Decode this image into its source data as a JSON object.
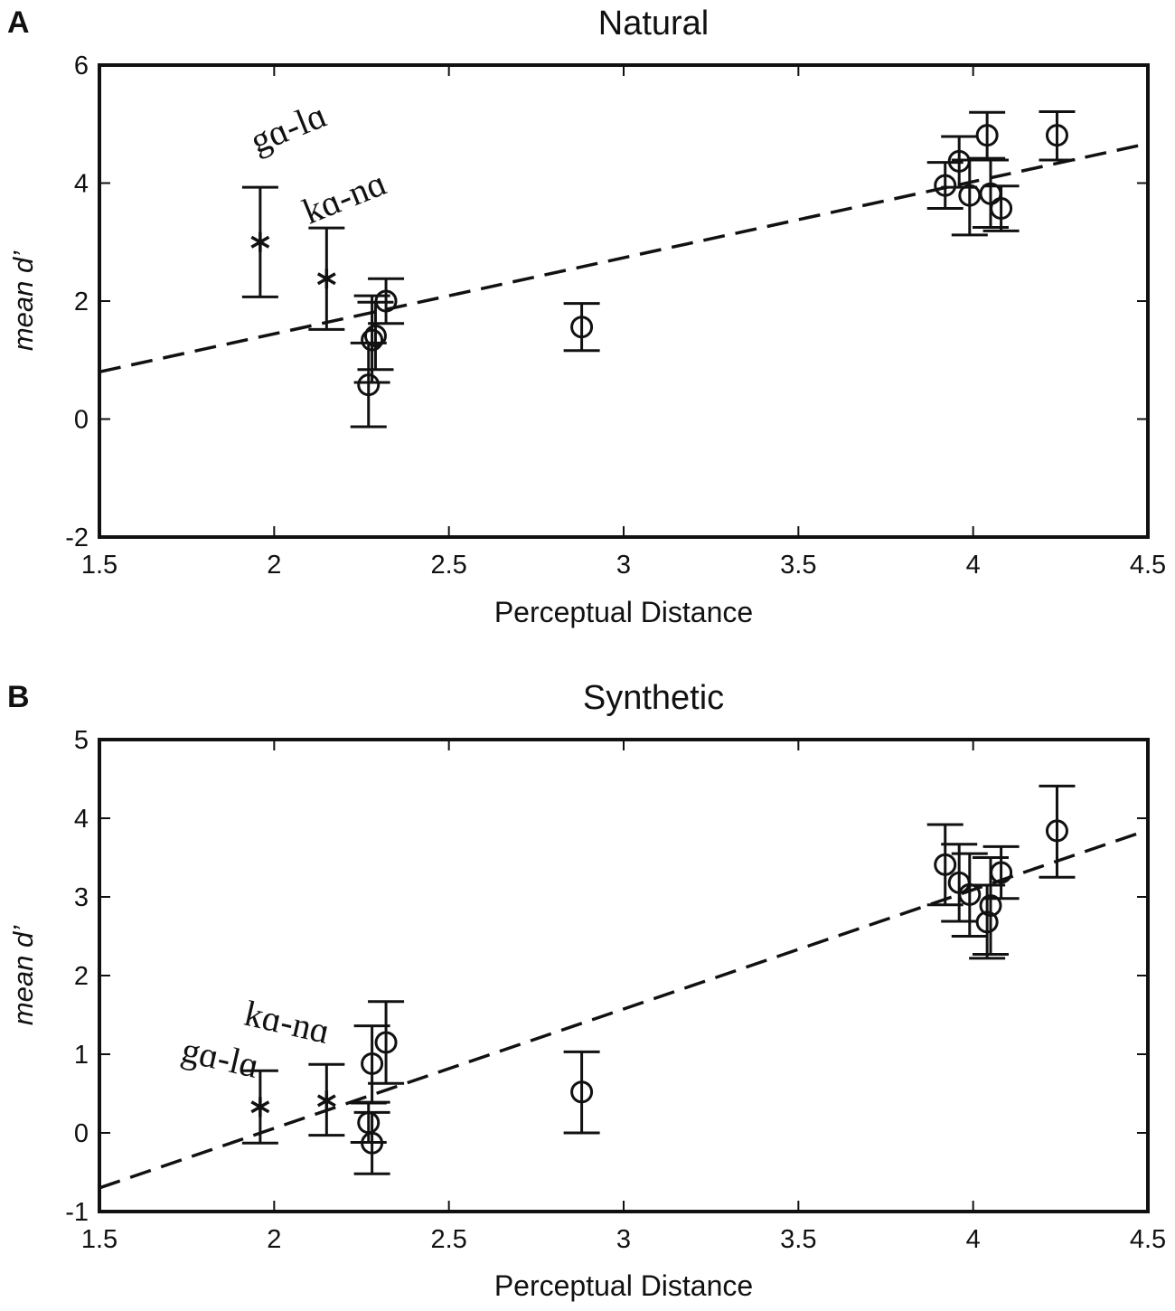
{
  "chart_data": [
    {
      "panel": "A",
      "type": "scatter",
      "title": "Natural",
      "xlabel": "Perceptual Distance",
      "ylabel": "mean d’",
      "xlim": [
        1.5,
        4.5
      ],
      "ylim": [
        -2,
        6
      ],
      "xticks": [
        "1.5",
        "2",
        "2.5",
        "3",
        "3.5",
        "4",
        "4.5"
      ],
      "yticks": [
        "-2",
        "0",
        "2",
        "4",
        "6"
      ],
      "annotations": [
        {
          "text": "gɑ-lɑ",
          "x": 1.95,
          "y": 4.5,
          "rotate": -22
        },
        {
          "text": "kɑ-nɑ",
          "x": 2.1,
          "y": 3.3,
          "rotate": -22
        }
      ],
      "series": [
        {
          "name": "star",
          "marker": "asterisk",
          "points": [
            {
              "x": 1.96,
              "y": 3.0,
              "lo": 2.07,
              "hi": 3.93
            },
            {
              "x": 2.15,
              "y": 2.38,
              "lo": 1.52,
              "hi": 3.24
            }
          ]
        },
        {
          "name": "circle",
          "marker": "circle",
          "points": [
            {
              "x": 2.27,
              "y": 0.58,
              "lo": -0.13,
              "hi": 1.29
            },
            {
              "x": 2.28,
              "y": 1.34,
              "lo": 0.62,
              "hi": 2.09
            },
            {
              "x": 2.29,
              "y": 1.41,
              "lo": 0.84,
              "hi": 1.98
            },
            {
              "x": 2.32,
              "y": 2.0,
              "lo": 1.62,
              "hi": 2.38
            },
            {
              "x": 2.88,
              "y": 1.56,
              "lo": 1.16,
              "hi": 1.96
            },
            {
              "x": 3.92,
              "y": 3.96,
              "lo": 3.57,
              "hi": 4.35
            },
            {
              "x": 3.96,
              "y": 4.37,
              "lo": 3.93,
              "hi": 4.79
            },
            {
              "x": 3.99,
              "y": 3.79,
              "lo": 3.12,
              "hi": 4.39
            },
            {
              "x": 4.04,
              "y": 4.81,
              "lo": 4.42,
              "hi": 5.2
            },
            {
              "x": 4.05,
              "y": 3.82,
              "lo": 3.25,
              "hi": 4.39
            },
            {
              "x": 4.08,
              "y": 3.57,
              "lo": 3.19,
              "hi": 3.95
            },
            {
              "x": 4.24,
              "y": 4.81,
              "lo": 4.39,
              "hi": 5.21
            }
          ]
        }
      ],
      "fit_line": {
        "style": "dashed",
        "x": [
          1.5,
          4.5
        ],
        "y": [
          0.8,
          4.67
        ]
      }
    },
    {
      "panel": "B",
      "type": "scatter",
      "title": "Synthetic",
      "xlabel": "Perceptual Distance",
      "ylabel": "mean d’",
      "xlim": [
        1.5,
        4.5
      ],
      "ylim": [
        -1,
        5
      ],
      "xticks": [
        "1.5",
        "2",
        "2.5",
        "3",
        "3.5",
        "4",
        "4.5"
      ],
      "yticks": [
        "-1",
        "0",
        "1",
        "2",
        "3",
        "4",
        "5"
      ],
      "annotations": [
        {
          "text": "gɑ-lɑ",
          "x": 1.73,
          "y": 0.92,
          "rotate": 13
        },
        {
          "text": "kɑ-nɑ",
          "x": 1.91,
          "y": 1.38,
          "rotate": 13
        }
      ],
      "series": [
        {
          "name": "star",
          "marker": "asterisk",
          "points": [
            {
              "x": 1.96,
              "y": 0.33,
              "lo": -0.13,
              "hi": 0.79
            },
            {
              "x": 2.15,
              "y": 0.41,
              "lo": -0.03,
              "hi": 0.87
            }
          ]
        },
        {
          "name": "circle",
          "marker": "circle",
          "points": [
            {
              "x": 2.27,
              "y": 0.13,
              "lo": -0.12,
              "hi": 0.38
            },
            {
              "x": 2.28,
              "y": -0.13,
              "lo": -0.52,
              "hi": 0.26
            },
            {
              "x": 2.28,
              "y": 0.88,
              "lo": 0.39,
              "hi": 1.36
            },
            {
              "x": 2.32,
              "y": 1.15,
              "lo": 0.63,
              "hi": 1.67
            },
            {
              "x": 2.88,
              "y": 0.52,
              "lo": 0.0,
              "hi": 1.03
            },
            {
              "x": 3.92,
              "y": 3.41,
              "lo": 2.9,
              "hi": 3.92
            },
            {
              "x": 3.96,
              "y": 3.18,
              "lo": 2.69,
              "hi": 3.67
            },
            {
              "x": 3.99,
              "y": 3.03,
              "lo": 2.5,
              "hi": 3.55
            },
            {
              "x": 4.04,
              "y": 2.68,
              "lo": 2.22,
              "hi": 3.15
            },
            {
              "x": 4.05,
              "y": 2.89,
              "lo": 2.27,
              "hi": 3.5
            },
            {
              "x": 4.08,
              "y": 3.31,
              "lo": 2.98,
              "hi": 3.64
            },
            {
              "x": 4.24,
              "y": 3.84,
              "lo": 3.25,
              "hi": 4.41
            }
          ]
        }
      ],
      "fit_line": {
        "style": "dashed",
        "x": [
          1.5,
          4.5
        ],
        "y": [
          -0.7,
          3.85
        ]
      }
    }
  ]
}
